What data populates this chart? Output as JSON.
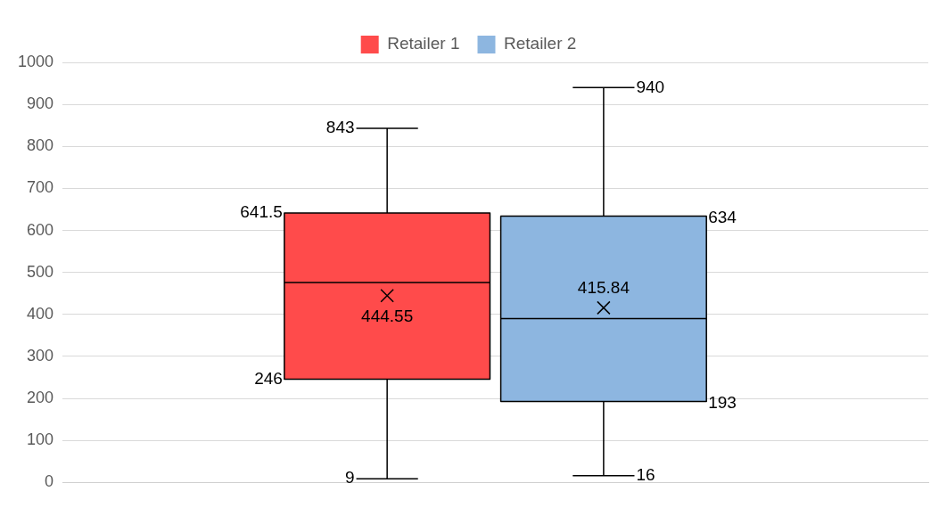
{
  "chart_data": {
    "type": "box",
    "categories": [
      null
    ],
    "series": [
      {
        "name": "Retailer 1",
        "color": "#ff4b4b",
        "boxes": [
          {
            "low": 9,
            "q1": 246,
            "median": 476,
            "q3": 641.5,
            "high": 843,
            "mean": 444.55
          }
        ]
      },
      {
        "name": "Retailer 2",
        "color": "#8db6e0",
        "boxes": [
          {
            "low": 16,
            "q1": 193,
            "median": 390,
            "q3": 634,
            "high": 940,
            "mean": 415.84
          }
        ]
      }
    ],
    "ylim": [
      0,
      1000
    ],
    "yticks": [
      0,
      100,
      200,
      300,
      400,
      500,
      600,
      700,
      800,
      900,
      1000
    ],
    "annotations": [
      "843",
      "641.5",
      "444.55",
      "246",
      "9",
      "940",
      "634",
      "415.84",
      "193",
      "16"
    ],
    "grid": "y",
    "legend": "top"
  }
}
